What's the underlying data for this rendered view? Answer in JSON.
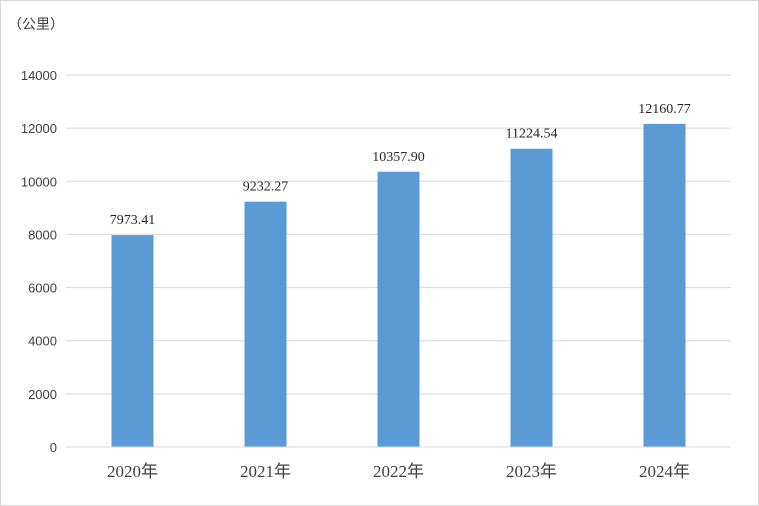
{
  "chart_data": {
    "type": "bar",
    "unit_label": "（公里）",
    "categories": [
      "2020年",
      "2021年",
      "2022年",
      "2023年",
      "2024年"
    ],
    "values": [
      7973.41,
      9232.27,
      10357.9,
      11224.54,
      12160.77
    ],
    "data_labels": [
      "7973.41",
      "9232.27",
      "10357.90",
      "11224.54",
      "12160.77"
    ],
    "ylim": [
      0,
      14000
    ],
    "yticks": [
      0,
      2000,
      4000,
      6000,
      8000,
      10000,
      12000,
      14000
    ],
    "grid": true,
    "bar_color": "#5B9BD5",
    "grid_color": "#d9d9d9"
  }
}
